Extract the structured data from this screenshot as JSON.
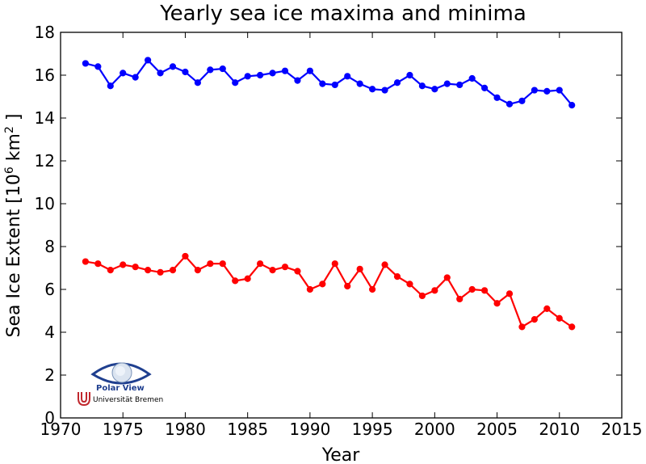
{
  "chart_data": {
    "type": "line",
    "title": "Yearly sea ice maxima and minima",
    "xlabel": "Year",
    "ylabel_main": "Sea Ice Extent [10",
    "ylabel_exp1": "6",
    "ylabel_mid": " km",
    "ylabel_exp2": "2",
    "ylabel_end": " ]",
    "xlim": [
      1970,
      2015
    ],
    "ylim": [
      0,
      18
    ],
    "xticks": [
      1970,
      1975,
      1980,
      1985,
      1990,
      1995,
      2000,
      2005,
      2010,
      2015
    ],
    "yticks": [
      0,
      2,
      4,
      6,
      8,
      10,
      12,
      14,
      16,
      18
    ],
    "grid": false,
    "x": [
      1972,
      1973,
      1974,
      1975,
      1976,
      1977,
      1978,
      1979,
      1980,
      1981,
      1982,
      1983,
      1984,
      1985,
      1986,
      1987,
      1988,
      1989,
      1990,
      1991,
      1992,
      1993,
      1994,
      1995,
      1996,
      1997,
      1998,
      1999,
      2000,
      2001,
      2002,
      2003,
      2004,
      2005,
      2006,
      2007,
      2008,
      2009,
      2010,
      2011
    ],
    "series": [
      {
        "color": "#0000ff",
        "values": [
          16.55,
          16.4,
          15.5,
          16.1,
          15.9,
          16.7,
          16.1,
          16.4,
          16.15,
          15.65,
          16.25,
          16.3,
          15.65,
          15.95,
          16.0,
          16.1,
          16.2,
          15.75,
          16.2,
          15.6,
          15.55,
          15.95,
          15.6,
          15.35,
          15.3,
          15.65,
          16.0,
          15.5,
          15.35,
          15.6,
          15.55,
          15.85,
          15.4,
          14.95,
          14.65,
          14.8,
          15.3,
          15.25,
          15.3,
          14.6
        ]
      },
      {
        "color": "#ff0000",
        "values": [
          7.3,
          7.2,
          6.9,
          7.15,
          7.05,
          6.9,
          6.8,
          6.9,
          7.55,
          6.9,
          7.2,
          7.2,
          6.4,
          6.5,
          7.2,
          6.9,
          7.05,
          6.85,
          6.0,
          6.25,
          7.2,
          6.15,
          6.95,
          6.0,
          7.15,
          6.6,
          6.25,
          5.7,
          5.95,
          6.55,
          5.55,
          6.0,
          5.95,
          5.35,
          5.8,
          4.25,
          4.6,
          5.1,
          4.65,
          4.25
        ]
      }
    ]
  },
  "logo": {
    "line1": "Polar View",
    "line2": "Universität Bremen",
    "eye_color": "#1f3f8f",
    "u_color": "#c0272d"
  }
}
